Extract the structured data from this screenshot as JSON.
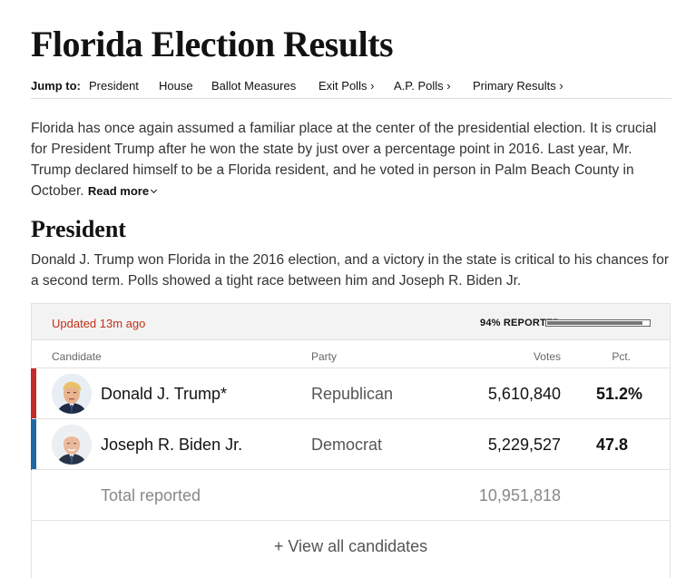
{
  "page": {
    "title": "Florida Election Results"
  },
  "nav": {
    "jump_label": "Jump to:",
    "items": [
      "President",
      "House",
      "Ballot Measures",
      "Exit Polls ›",
      "A.P. Polls ›",
      "Primary Results ›"
    ]
  },
  "intro": {
    "text": "Florida has once again assumed a familiar place at the center of the presidential election. It is crucial for President Trump after he won the state by just over a percentage point in 2016. Last year, Mr. Trump declared himself to be a Florida resident, and he voted in person in Palm Beach County in October.",
    "read_more": "Read more"
  },
  "president": {
    "heading": "President",
    "description": "Donald J. Trump won Florida in the 2016 election, and a victory in the state is critical to his chances for a second term. Polls showed a tight race between him and Joseph R. Biden Jr."
  },
  "results": {
    "updated": "Updated 13m ago",
    "reported_label": "94% REPORTED",
    "reported_fraction": 0.94,
    "columns": {
      "candidate": "Candidate",
      "party": "Party",
      "votes": "Votes",
      "pct": "Pct."
    },
    "candidates": [
      {
        "name": "Donald J. Trump*",
        "party": "Republican",
        "votes": "5,610,840",
        "pct": "51.2%",
        "color": "#c52b2b"
      },
      {
        "name": "Joseph R. Biden Jr.",
        "party": "Democrat",
        "votes": "5,229,527",
        "pct": "47.8",
        "color": "#1d6aa5"
      }
    ],
    "total": {
      "label": "Total reported",
      "votes": "10,951,818"
    },
    "view_all": "+ View all candidates"
  }
}
